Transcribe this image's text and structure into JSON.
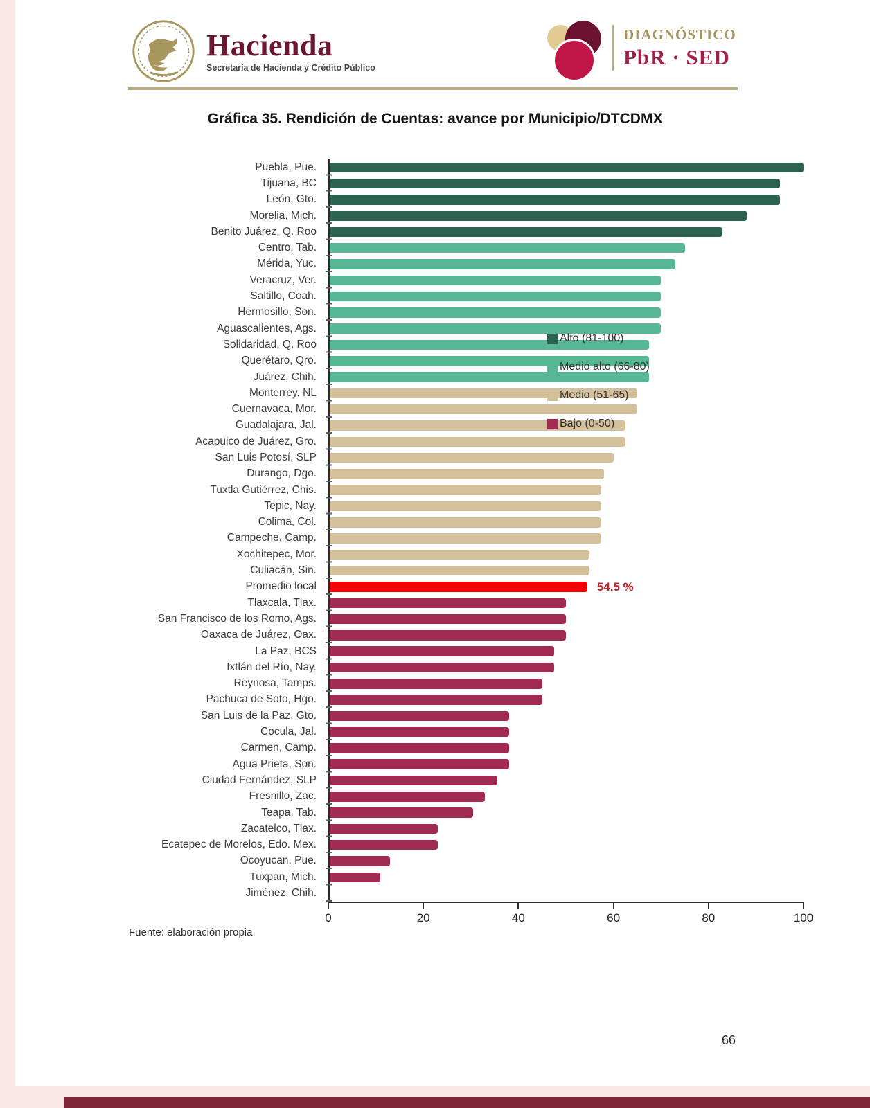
{
  "page": {
    "source": "Fuente: elaboración propia.",
    "number": "66"
  },
  "header": {
    "hacienda": {
      "wordmark": "Hacienda",
      "subtitle": "Secretaría de Hacienda y Crédito Público"
    },
    "pbr_sed": {
      "line1": "DIAGNÓSTICO",
      "line2": "PbR · SED"
    }
  },
  "chart_data": {
    "type": "bar",
    "orientation": "horizontal",
    "title": "Gráfica 35. Rendición de Cuentas: avance por Municipio/DTCDMX",
    "xlabel": "",
    "ylabel": "",
    "xlim": [
      0,
      100
    ],
    "x_ticks": [
      0,
      20,
      40,
      60,
      80,
      100
    ],
    "grid": false,
    "legend_position": "right",
    "colors": {
      "alto": "#2d6150",
      "medio_alto": "#57b694",
      "medio": "#d4c09a",
      "bajo": "#a02a52",
      "promedio": "#f40505",
      "promedio_label": "#c4232b"
    },
    "legend": [
      {
        "key": "alto",
        "label": "Alto (81-100)"
      },
      {
        "key": "medio_alto",
        "label": "Medio alto (66-80)"
      },
      {
        "key": "medio",
        "label": "Medio (51-65)"
      },
      {
        "key": "bajo",
        "label": "Bajo (0-50)"
      }
    ],
    "rows": [
      {
        "label": "Puebla, Pue.",
        "value": 100,
        "category": "alto"
      },
      {
        "label": "Tijuana, BC",
        "value": 95,
        "category": "alto"
      },
      {
        "label": "León, Gto.",
        "value": 95,
        "category": "alto"
      },
      {
        "label": "Morelia, Mich.",
        "value": 88,
        "category": "alto"
      },
      {
        "label": "Benito Juárez, Q. Roo",
        "value": 83,
        "category": "alto"
      },
      {
        "label": "Centro, Tab.",
        "value": 75,
        "category": "medio_alto"
      },
      {
        "label": "Mérida, Yuc.",
        "value": 73,
        "category": "medio_alto"
      },
      {
        "label": "Veracruz, Ver.",
        "value": 70,
        "category": "medio_alto"
      },
      {
        "label": "Saltillo, Coah.",
        "value": 70,
        "category": "medio_alto"
      },
      {
        "label": "Hermosillo, Son.",
        "value": 70,
        "category": "medio_alto"
      },
      {
        "label": "Aguascalientes, Ags.",
        "value": 70,
        "category": "medio_alto"
      },
      {
        "label": "Solidaridad, Q. Roo",
        "value": 67.5,
        "category": "medio_alto"
      },
      {
        "label": "Querétaro, Qro.",
        "value": 67.5,
        "category": "medio_alto"
      },
      {
        "label": "Juárez, Chih.",
        "value": 67.5,
        "category": "medio_alto"
      },
      {
        "label": "Monterrey, NL",
        "value": 65,
        "category": "medio"
      },
      {
        "label": "Cuernavaca, Mor.",
        "value": 65,
        "category": "medio"
      },
      {
        "label": "Guadalajara, Jal.",
        "value": 62.5,
        "category": "medio"
      },
      {
        "label": "Acapulco de Juárez, Gro.",
        "value": 62.5,
        "category": "medio"
      },
      {
        "label": "San Luis Potosí, SLP",
        "value": 60,
        "category": "medio"
      },
      {
        "label": "Durango, Dgo.",
        "value": 58,
        "category": "medio"
      },
      {
        "label": "Tuxtla Gutiérrez, Chis.",
        "value": 57.5,
        "category": "medio"
      },
      {
        "label": "Tepic, Nay.",
        "value": 57.5,
        "category": "medio"
      },
      {
        "label": "Colima, Col.",
        "value": 57.5,
        "category": "medio"
      },
      {
        "label": "Campeche, Camp.",
        "value": 57.5,
        "category": "medio"
      },
      {
        "label": "Xochitepec, Mor.",
        "value": 55,
        "category": "medio"
      },
      {
        "label": "Culiacán, Sin.",
        "value": 55,
        "category": "medio"
      },
      {
        "label": "Promedio local",
        "value": 54.5,
        "category": "promedio",
        "annotation": "54.5 %"
      },
      {
        "label": "Tlaxcala, Tlax.",
        "value": 50,
        "category": "bajo"
      },
      {
        "label": "San Francisco de los Romo, Ags.",
        "value": 50,
        "category": "bajo"
      },
      {
        "label": "Oaxaca de Juárez, Oax.",
        "value": 50,
        "category": "bajo"
      },
      {
        "label": "La Paz, BCS",
        "value": 47.5,
        "category": "bajo"
      },
      {
        "label": "Ixtlán del Río, Nay.",
        "value": 47.5,
        "category": "bajo"
      },
      {
        "label": "Reynosa, Tamps.",
        "value": 45,
        "category": "bajo"
      },
      {
        "label": "Pachuca de Soto, Hgo.",
        "value": 45,
        "category": "bajo"
      },
      {
        "label": "San Luis de la Paz, Gto.",
        "value": 38,
        "category": "bajo"
      },
      {
        "label": "Cocula, Jal.",
        "value": 38,
        "category": "bajo"
      },
      {
        "label": "Carmen, Camp.",
        "value": 38,
        "category": "bajo"
      },
      {
        "label": "Agua Prieta, Son.",
        "value": 38,
        "category": "bajo"
      },
      {
        "label": "Ciudad Fernández, SLP",
        "value": 35.5,
        "category": "bajo"
      },
      {
        "label": "Fresnillo, Zac.",
        "value": 33,
        "category": "bajo"
      },
      {
        "label": "Teapa, Tab.",
        "value": 30.5,
        "category": "bajo"
      },
      {
        "label": "Zacatelco, Tlax.",
        "value": 23,
        "category": "bajo"
      },
      {
        "label": "Ecatepec de Morelos, Edo. Mex.",
        "value": 23,
        "category": "bajo"
      },
      {
        "label": "Ocoyucan, Pue.",
        "value": 13,
        "category": "bajo"
      },
      {
        "label": "Tuxpan, Mich.",
        "value": 11,
        "category": "bajo"
      },
      {
        "label": "Jiménez, Chih.",
        "value": 0,
        "category": "bajo"
      }
    ]
  }
}
